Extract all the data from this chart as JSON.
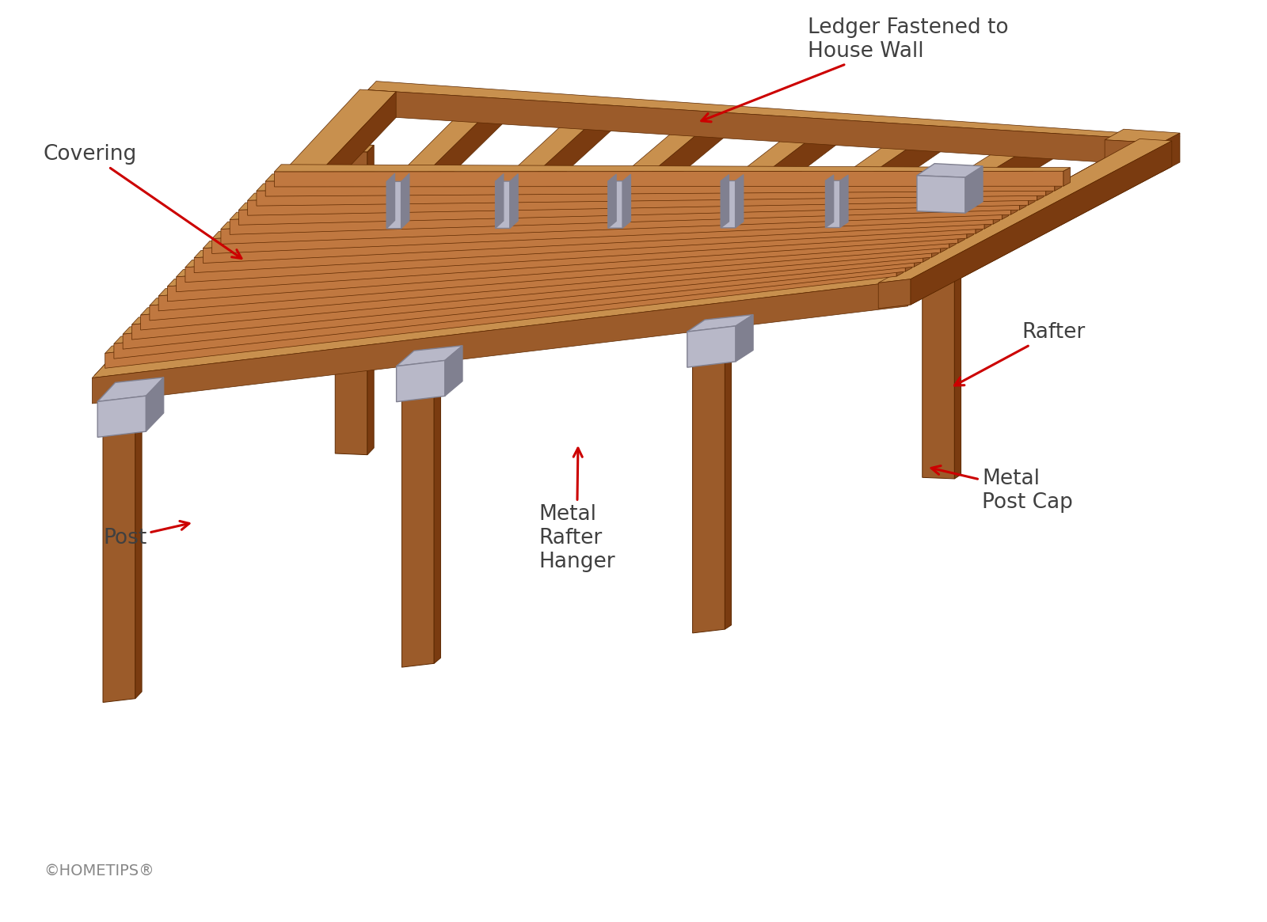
{
  "background_color": "#ffffff",
  "wood_dark": "#7A3B10",
  "wood_mid": "#9B5B2A",
  "wood_light": "#C07840",
  "wood_top": "#C8904E",
  "wood_highlight": "#D4A870",
  "metal_color": "#B8B8C8",
  "metal_dark": "#808090",
  "label_color": "#404040",
  "arrow_color": "#CC0000",
  "watermark_color": "#888888",
  "labels": {
    "covering": "Covering",
    "ledger": "Ledger Fastened to\nHouse Wall",
    "rafter": "Rafter",
    "post": "Post",
    "metal_rafter_hanger": "Metal\nRafter\nHanger",
    "metal_post_cap": "Metal\nPost Cap"
  },
  "watermark": "©HOMETIPS®",
  "label_fontsize": 19,
  "watermark_fontsize": 14
}
